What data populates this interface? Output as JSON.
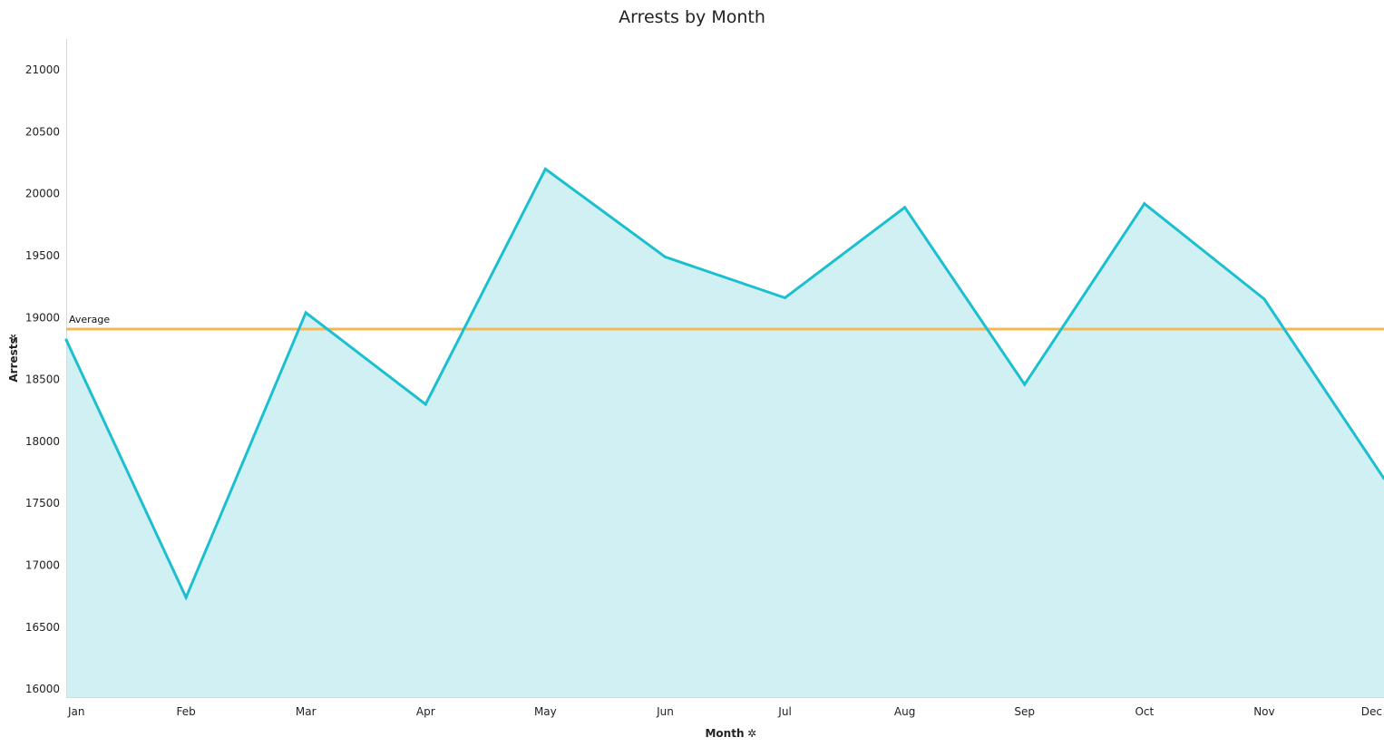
{
  "chart_data": {
    "type": "area",
    "title": "Arrests by Month",
    "xlabel": "Month",
    "ylabel": "Arrests",
    "categories": [
      "Jan",
      "Feb",
      "Mar",
      "Apr",
      "May",
      "Jun",
      "Jul",
      "Aug",
      "Sep",
      "Oct",
      "Nov",
      "Dec"
    ],
    "series": [
      {
        "name": "",
        "values": [
          18820,
          16740,
          19040,
          18300,
          20200,
          19490,
          19160,
          19890,
          18460,
          19920,
          19150,
          17700
        ],
        "color": "#1cbfd0",
        "fill_color": "#d0f0f3"
      }
    ],
    "yticks": [
      16000,
      16500,
      17000,
      17500,
      18000,
      18500,
      19000,
      19500,
      20000,
      20500,
      21000
    ],
    "ylim": [
      15935,
      21250
    ],
    "reference_line": {
      "label": "Average",
      "value": 18907,
      "color": "#f5b754"
    },
    "axis_pin_icon": "pin-icon",
    "grid": false
  }
}
